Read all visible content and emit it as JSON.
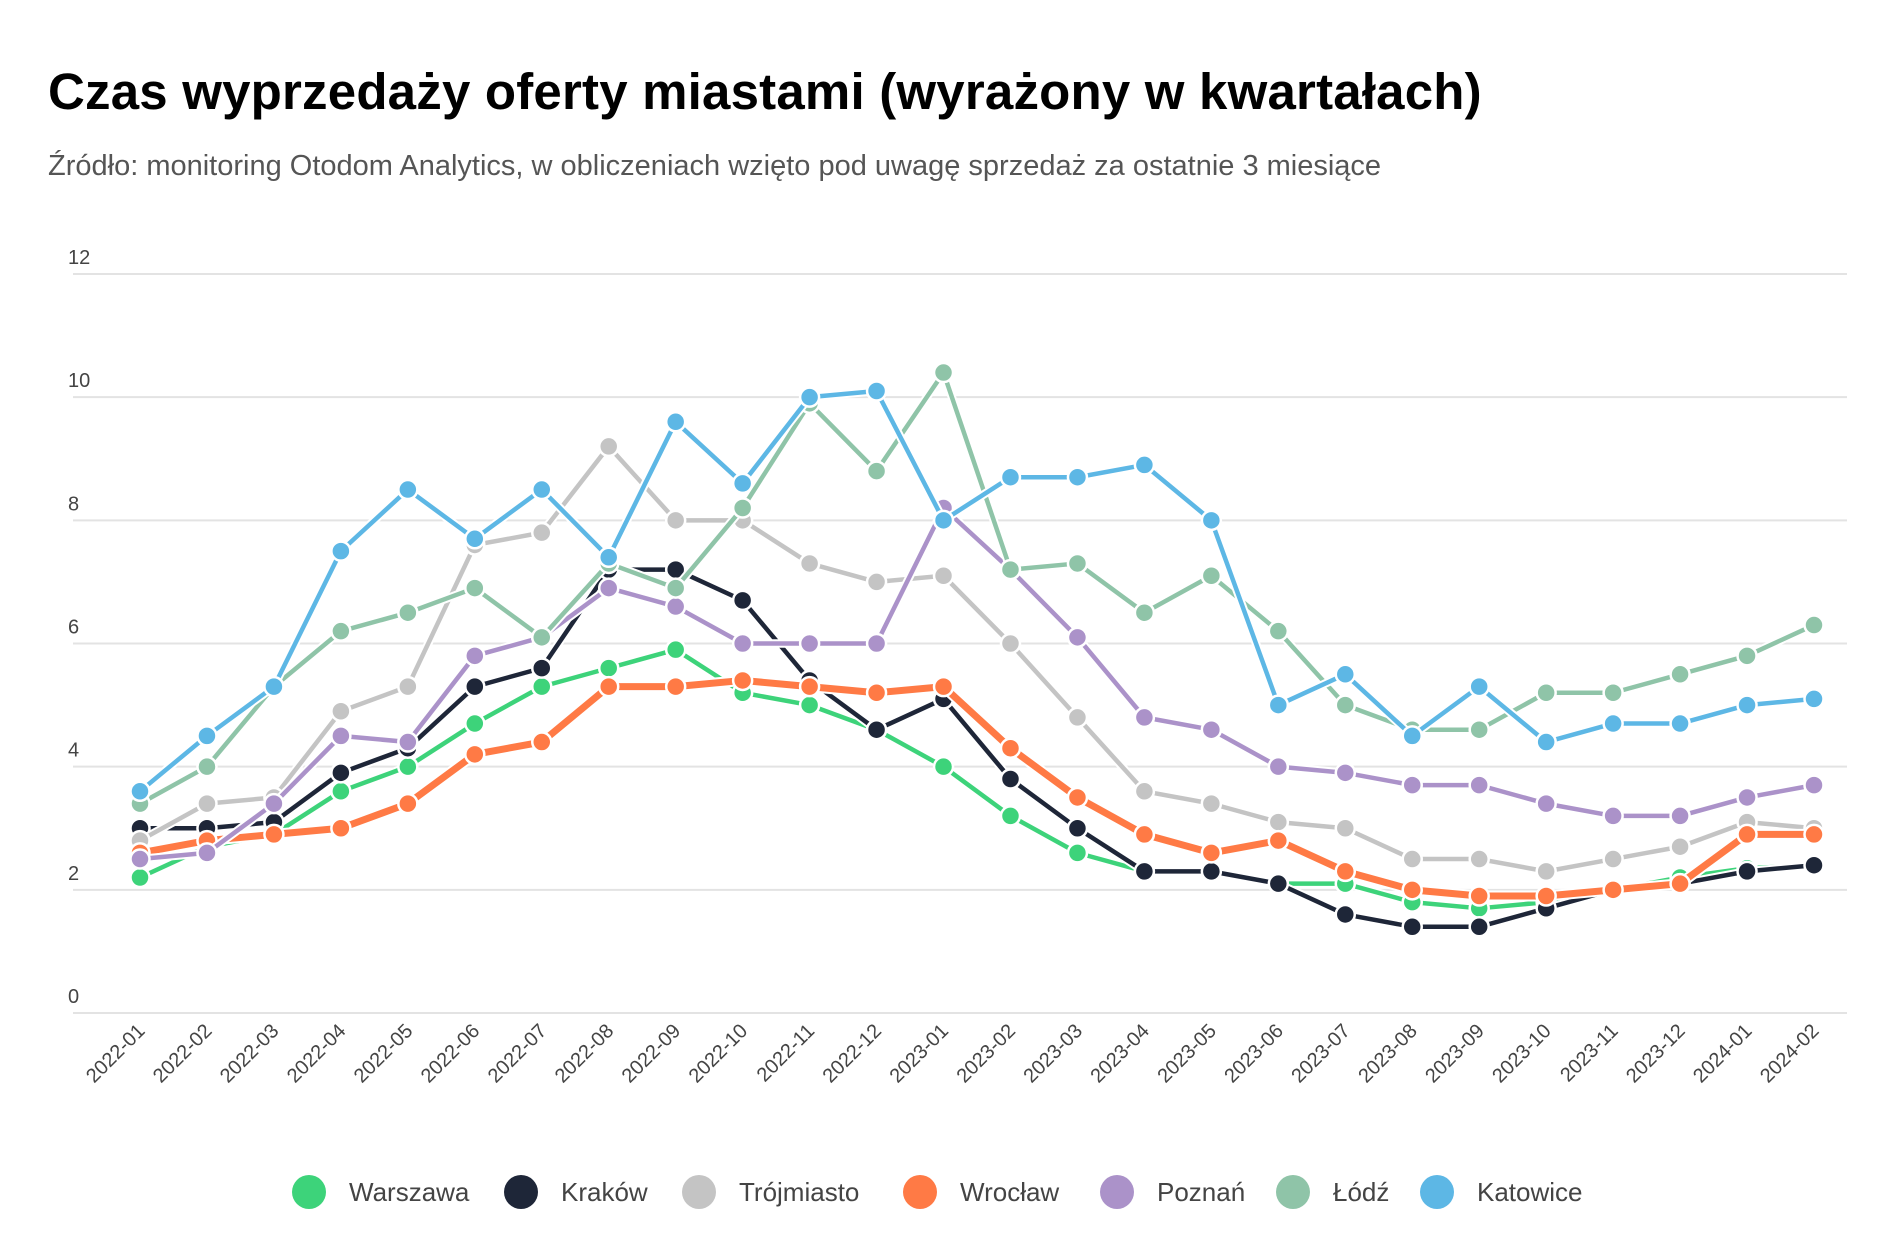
{
  "chart_data": {
    "type": "line",
    "title": "Czas wyprzedaży oferty miastami (wyrażony w kwartałach)",
    "subtitle": "Źródło: monitoring Otodom Analytics, w obliczeniach wzięto pod uwagę sprzedaż za ostatnie 3 miesiące",
    "xlabel": "",
    "ylabel": "",
    "ylim": [
      0,
      12
    ],
    "yticks": [
      "0",
      "2",
      "4",
      "6",
      "8",
      "10",
      "12"
    ],
    "grid": true,
    "legend_position": "bottom",
    "x": [
      "2022-01",
      "2022-02",
      "2022-03",
      "2022-04",
      "2022-05",
      "2022-06",
      "2022-07",
      "2022-08",
      "2022-09",
      "2022-10",
      "2022-11",
      "2022-12",
      "2023-01",
      "2023-02",
      "2023-03",
      "2023-04",
      "2023-05",
      "2023-06",
      "2023-07",
      "2023-08",
      "2023-09",
      "2023-10",
      "2023-11",
      "2023-12",
      "2024-01",
      "2024-02"
    ],
    "series": [
      {
        "name": "Warszawa",
        "color": "#3dd37a",
        "values": [
          2.2,
          2.7,
          2.9,
          3.6,
          4.0,
          4.7,
          5.3,
          5.6,
          5.9,
          5.2,
          5.0,
          4.6,
          4.0,
          3.2,
          2.6,
          2.3,
          2.3,
          2.1,
          2.1,
          1.8,
          1.7,
          1.8,
          2.0,
          2.2,
          2.35,
          2.4
        ]
      },
      {
        "name": "Kraków",
        "color": "#1e2638",
        "values": [
          3.0,
          3.0,
          3.1,
          3.9,
          4.3,
          5.3,
          5.6,
          7.2,
          7.2,
          6.7,
          5.4,
          4.6,
          5.1,
          3.8,
          3.0,
          2.3,
          2.3,
          2.1,
          1.6,
          1.4,
          1.4,
          1.7,
          2.0,
          2.1,
          2.3,
          2.4
        ]
      },
      {
        "name": "Trójmiasto",
        "color": "#c4c4c4",
        "values": [
          2.8,
          3.4,
          3.5,
          4.9,
          5.3,
          7.6,
          7.8,
          9.2,
          8.0,
          8.0,
          7.3,
          7.0,
          7.1,
          6.0,
          4.8,
          3.6,
          3.4,
          3.1,
          3.0,
          2.5,
          2.5,
          2.3,
          2.5,
          2.7,
          3.1,
          3.0
        ]
      },
      {
        "name": "Wrocław",
        "color": "#ff7a45",
        "values": [
          2.6,
          2.8,
          2.9,
          3.0,
          3.4,
          4.2,
          4.4,
          5.3,
          5.3,
          5.4,
          5.3,
          5.2,
          5.3,
          4.3,
          3.5,
          2.9,
          2.6,
          2.8,
          2.3,
          2.0,
          1.9,
          1.9,
          2.0,
          2.1,
          2.9,
          2.9
        ]
      },
      {
        "name": "Poznań",
        "color": "#ab92c9",
        "values": [
          2.5,
          2.6,
          3.4,
          4.5,
          4.4,
          5.8,
          6.1,
          6.9,
          6.6,
          6.0,
          6.0,
          6.0,
          8.2,
          7.2,
          6.1,
          4.8,
          4.6,
          4.0,
          3.9,
          3.7,
          3.7,
          3.4,
          3.2,
          3.2,
          3.5,
          3.7
        ]
      },
      {
        "name": "Łódź",
        "color": "#8fc4a8",
        "values": [
          3.4,
          4.0,
          5.3,
          6.2,
          6.5,
          6.9,
          6.1,
          7.3,
          6.9,
          8.2,
          9.9,
          8.8,
          10.4,
          7.2,
          7.3,
          6.5,
          7.1,
          6.2,
          5.0,
          4.6,
          4.6,
          5.2,
          5.2,
          5.5,
          5.8,
          6.3
        ]
      },
      {
        "name": "Katowice",
        "color": "#5db7e5",
        "values": [
          3.6,
          4.5,
          5.3,
          7.5,
          8.5,
          7.7,
          8.5,
          7.4,
          9.6,
          8.6,
          10.0,
          10.1,
          8.0,
          8.7,
          8.7,
          8.9,
          8.0,
          5.0,
          5.5,
          4.5,
          5.3,
          4.4,
          4.7,
          4.7,
          5.0,
          5.1
        ]
      }
    ]
  }
}
